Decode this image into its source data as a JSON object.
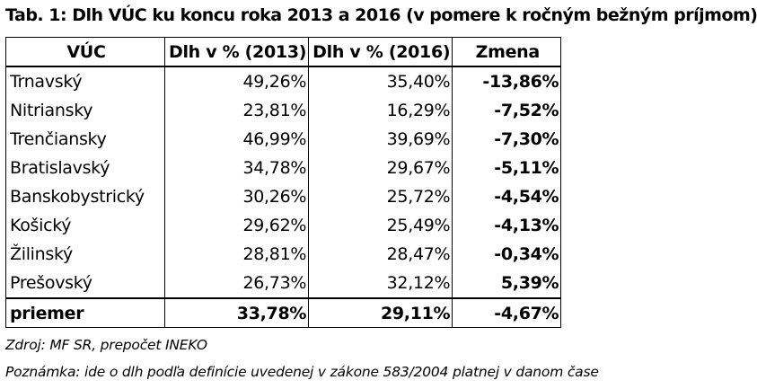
{
  "title": "Tab. 1: Dlh VÚC ku koncu roka 2013 a 2016 (v pomere k ročným bežným príjmom)",
  "table": {
    "headers": [
      "VÚC",
      "Dlh v % (2013)",
      "Dlh v % (2016)",
      "Zmena"
    ],
    "rows": [
      {
        "region": "Trnavský",
        "debt_2013": "49,26%",
        "debt_2016": "35,40%",
        "change": "-13,86%"
      },
      {
        "region": "Nitriansky",
        "debt_2013": "23,81%",
        "debt_2016": "16,29%",
        "change": "-7,52%"
      },
      {
        "region": "Trenčiansky",
        "debt_2013": "46,99%",
        "debt_2016": "39,69%",
        "change": "-7,30%"
      },
      {
        "region": "Bratislavský",
        "debt_2013": "34,78%",
        "debt_2016": "29,67%",
        "change": "-5,11%"
      },
      {
        "region": "Banskobystrický",
        "debt_2013": "30,26%",
        "debt_2016": "25,72%",
        "change": "-4,54%"
      },
      {
        "region": "Košický",
        "debt_2013": "29,62%",
        "debt_2016": "25,49%",
        "change": "-4,13%"
      },
      {
        "region": "Žilinský",
        "debt_2013": "28,81%",
        "debt_2016": "28,47%",
        "change": "-0,34%"
      },
      {
        "region": "Prešovský",
        "debt_2013": "26,73%",
        "debt_2016": "32,12%",
        "change": "5,39%"
      }
    ],
    "average": {
      "region": "priemer",
      "debt_2013": "33,78%",
      "debt_2016": "29,11%",
      "change": "-4,67%"
    }
  },
  "notes": {
    "source": "Zdroj: MF SR, prepočet INEKO",
    "remark": "Poznámka: ide o dlh podľa definície uvedenej v zákone 583/2004 platnej v danom čase"
  }
}
